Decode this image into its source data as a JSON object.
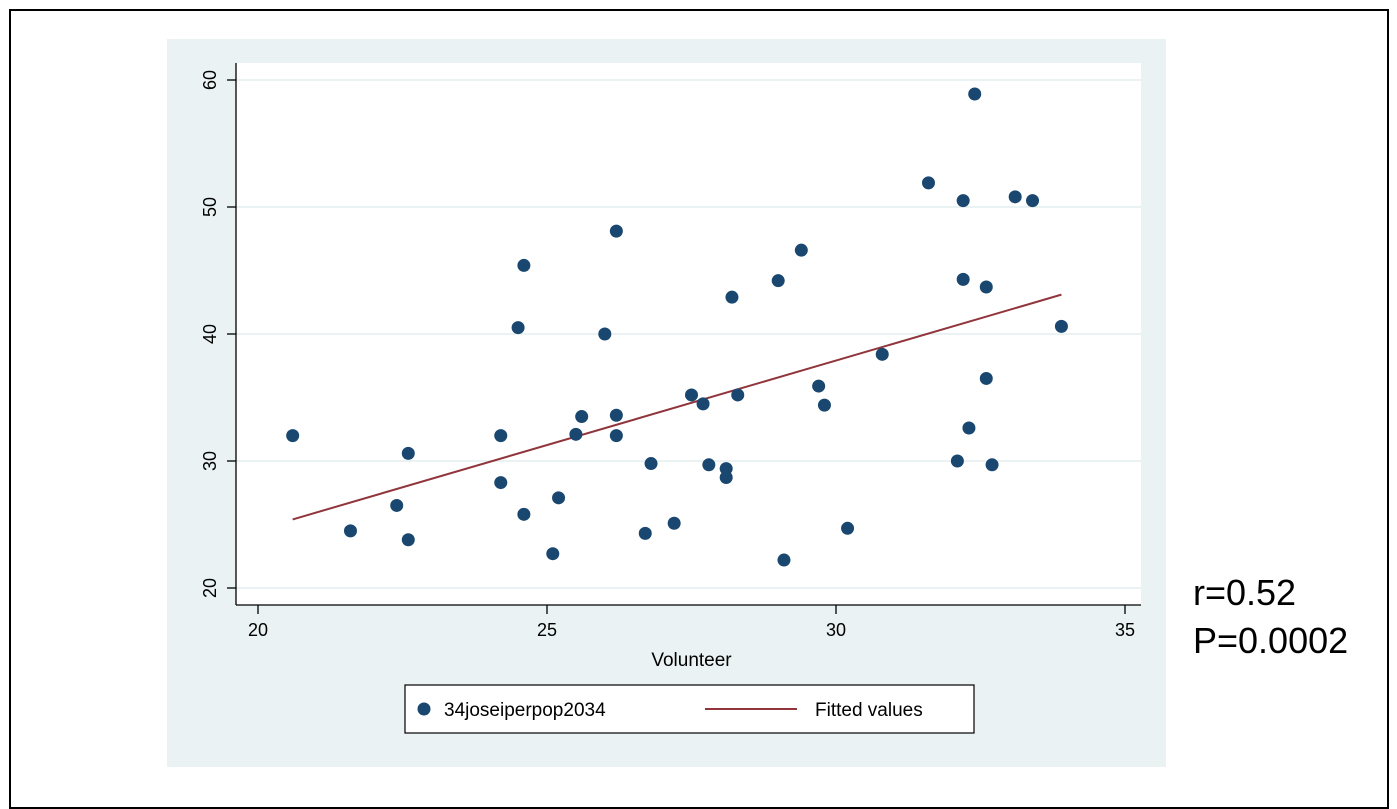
{
  "colors": {
    "outer_background": "#eaf2f3",
    "plot_background": "#ffffff",
    "grid": "#eaf2f3",
    "marker": "#1a476f",
    "fit_line": "#90353b",
    "axis": "#000000"
  },
  "stats": {
    "r_text": "r=0.52",
    "p_text": "P=0.0002"
  },
  "chart_data": {
    "type": "scatter",
    "xlabel": "Volunteer",
    "ylabel": "",
    "xlim": [
      20,
      35
    ],
    "ylim": [
      20,
      60
    ],
    "x_ticks": [
      20,
      25,
      30,
      35
    ],
    "y_ticks": [
      20,
      30,
      40,
      50,
      60
    ],
    "grid": true,
    "legend_position": "bottom",
    "series": [
      {
        "name": "34joseiperpop2034",
        "kind": "scatter",
        "points": [
          [
            20.6,
            32.0
          ],
          [
            21.6,
            24.5
          ],
          [
            22.4,
            26.5
          ],
          [
            22.6,
            30.6
          ],
          [
            22.6,
            23.8
          ],
          [
            24.2,
            32.0
          ],
          [
            24.2,
            28.3
          ],
          [
            24.5,
            40.5
          ],
          [
            24.6,
            45.4
          ],
          [
            24.6,
            25.8
          ],
          [
            25.1,
            22.7
          ],
          [
            25.2,
            27.1
          ],
          [
            25.5,
            32.1
          ],
          [
            25.6,
            33.5
          ],
          [
            26.0,
            40.0
          ],
          [
            26.2,
            48.1
          ],
          [
            26.2,
            33.6
          ],
          [
            26.2,
            32.0
          ],
          [
            26.7,
            24.3
          ],
          [
            26.8,
            29.8
          ],
          [
            27.2,
            25.1
          ],
          [
            27.5,
            35.2
          ],
          [
            27.7,
            34.5
          ],
          [
            27.8,
            29.7
          ],
          [
            28.1,
            29.4
          ],
          [
            28.1,
            28.7
          ],
          [
            28.2,
            42.9
          ],
          [
            28.3,
            35.2
          ],
          [
            29.0,
            44.2
          ],
          [
            29.1,
            22.2
          ],
          [
            29.4,
            46.6
          ],
          [
            29.7,
            35.9
          ],
          [
            29.8,
            34.4
          ],
          [
            30.2,
            24.7
          ],
          [
            30.8,
            38.4
          ],
          [
            31.6,
            51.9
          ],
          [
            32.1,
            30.0
          ],
          [
            32.2,
            50.5
          ],
          [
            32.2,
            44.3
          ],
          [
            32.3,
            32.6
          ],
          [
            32.4,
            58.9
          ],
          [
            32.6,
            43.7
          ],
          [
            32.6,
            36.5
          ],
          [
            32.7,
            29.7
          ],
          [
            33.1,
            50.8
          ],
          [
            33.4,
            50.5
          ],
          [
            33.9,
            40.6
          ]
        ]
      },
      {
        "name": "Fitted values",
        "kind": "line",
        "points": [
          [
            20.6,
            25.4
          ],
          [
            33.9,
            43.1
          ]
        ]
      }
    ]
  }
}
